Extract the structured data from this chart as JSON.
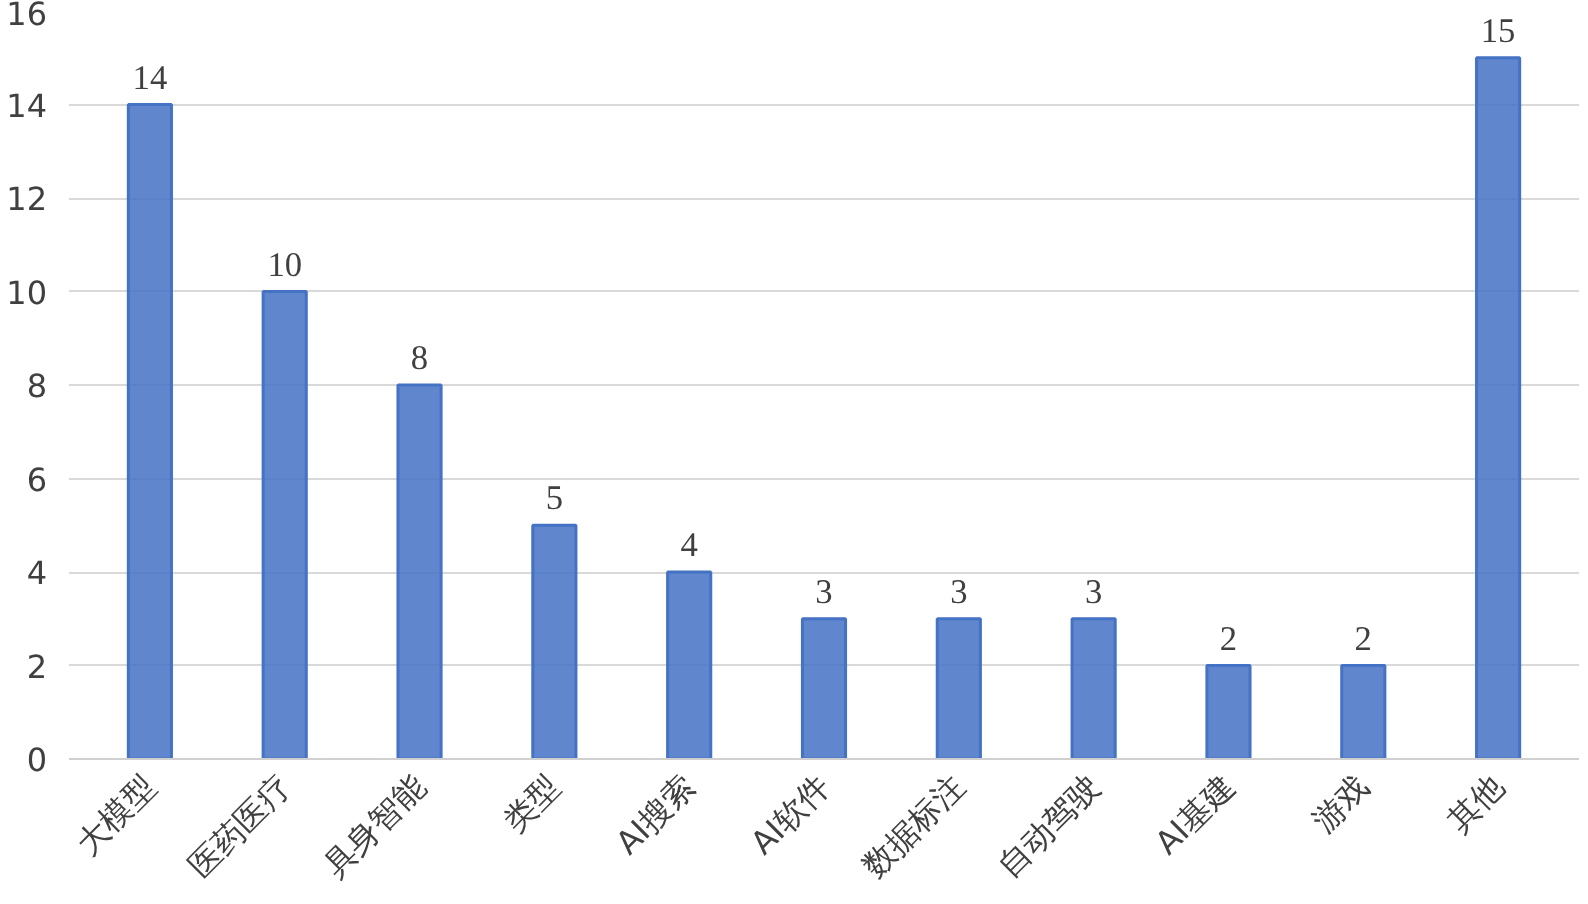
{
  "chart_data": {
    "type": "bar",
    "categories": [
      "大模型",
      "医药医疗",
      "具身智能",
      "类型",
      "AI搜索",
      "AI软件",
      "数据标注",
      "自动驾驶",
      "AI基建",
      "游戏",
      "其他"
    ],
    "values": [
      14,
      10,
      8,
      5,
      4,
      3,
      3,
      3,
      2,
      2,
      15
    ],
    "color": "#4472c4",
    "ylim": [
      0,
      16
    ],
    "yticks": [
      0,
      2,
      4,
      6,
      8,
      10,
      12,
      14,
      16
    ],
    "grid": "y",
    "data_labels": true
  }
}
